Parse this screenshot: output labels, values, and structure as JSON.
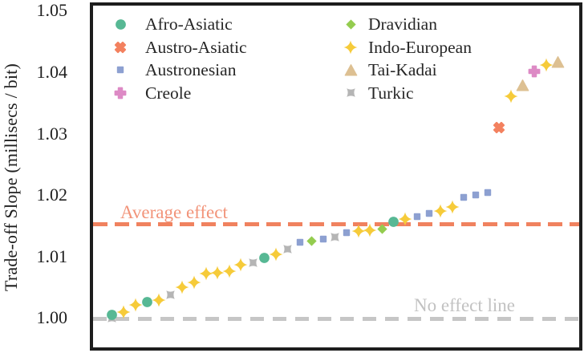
{
  "chart_data": {
    "type": "scatter",
    "title": "",
    "xlabel": "",
    "ylabel": "Trade-off Slope (millisecs / bit)",
    "ylim": [
      0.9993,
      1.0505
    ],
    "yticks": [
      1.0,
      1.01,
      1.02,
      1.03,
      1.04,
      1.05
    ],
    "grid": false,
    "legend": {
      "position": "upper-left-inside",
      "columns": 2
    },
    "families": [
      {
        "id": "afro_asiatic",
        "label": "Afro-Asiatic",
        "marker": "circle",
        "color": "#57b894"
      },
      {
        "id": "austro_asiatic",
        "label": "Austro-Asiatic",
        "marker": "x",
        "color": "#f3815f"
      },
      {
        "id": "austronesian",
        "label": "Austronesian",
        "marker": "square",
        "color": "#8da0d1"
      },
      {
        "id": "creole",
        "label": "Creole",
        "marker": "plus",
        "color": "#dd8ac5"
      },
      {
        "id": "dravidian",
        "label": "Dravidian",
        "marker": "diamond",
        "color": "#94cc4f"
      },
      {
        "id": "indo_european",
        "label": "Indo-European",
        "marker": "star4",
        "color": "#f6cb3a"
      },
      {
        "id": "tai_kadai",
        "label": "Tai-Kadai",
        "marker": "triangle",
        "color": "#ddc092"
      },
      {
        "id": "turkic",
        "label": "Turkic",
        "marker": "xstar",
        "color": "#b5b5b5"
      }
    ],
    "points": [
      {
        "slot": 0,
        "family": "turkic",
        "value": 1.0
      },
      {
        "slot": 0,
        "family": "afro_asiatic",
        "value": 1.0004
      },
      {
        "slot": 1,
        "family": "indo_european",
        "value": 1.0009
      },
      {
        "slot": 2,
        "family": "indo_european",
        "value": 1.0021
      },
      {
        "slot": 3,
        "family": "afro_asiatic",
        "value": 1.0026
      },
      {
        "slot": 4,
        "family": "indo_european",
        "value": 1.0029
      },
      {
        "slot": 5,
        "family": "turkic",
        "value": 1.0037
      },
      {
        "slot": 6,
        "family": "indo_european",
        "value": 1.005
      },
      {
        "slot": 7,
        "family": "indo_european",
        "value": 1.0058
      },
      {
        "slot": 8,
        "family": "indo_european",
        "value": 1.0072
      },
      {
        "slot": 9,
        "family": "indo_european",
        "value": 1.0073
      },
      {
        "slot": 10,
        "family": "indo_european",
        "value": 1.0076
      },
      {
        "slot": 11,
        "family": "indo_european",
        "value": 1.0086
      },
      {
        "slot": 12,
        "family": "turkic",
        "value": 1.0089
      },
      {
        "slot": 13,
        "family": "afro_asiatic",
        "value": 1.0098
      },
      {
        "slot": 14,
        "family": "indo_european",
        "value": 1.0103
      },
      {
        "slot": 15,
        "family": "turkic",
        "value": 1.0112
      },
      {
        "slot": 16,
        "family": "austronesian",
        "value": 1.0123
      },
      {
        "slot": 17,
        "family": "dravidian",
        "value": 1.0125
      },
      {
        "slot": 18,
        "family": "austronesian",
        "value": 1.0128
      },
      {
        "slot": 19,
        "family": "turkic",
        "value": 1.0132
      },
      {
        "slot": 20,
        "family": "austronesian",
        "value": 1.0139
      },
      {
        "slot": 21,
        "family": "indo_european",
        "value": 1.0141
      },
      {
        "slot": 22,
        "family": "indo_european",
        "value": 1.0143
      },
      {
        "slot": 23,
        "family": "dravidian",
        "value": 1.0144
      },
      {
        "slot": 24,
        "family": "afro_asiatic",
        "value": 1.0156
      },
      {
        "slot": 25,
        "family": "indo_european",
        "value": 1.0161
      },
      {
        "slot": 26,
        "family": "austronesian",
        "value": 1.0165
      },
      {
        "slot": 27,
        "family": "austronesian",
        "value": 1.017
      },
      {
        "slot": 28,
        "family": "indo_european",
        "value": 1.0174
      },
      {
        "slot": 29,
        "family": "indo_european",
        "value": 1.018
      },
      {
        "slot": 30,
        "family": "austronesian",
        "value": 1.0196
      },
      {
        "slot": 31,
        "family": "austronesian",
        "value": 1.02
      },
      {
        "slot": 32,
        "family": "austronesian",
        "value": 1.0204
      },
      {
        "slot": 33,
        "family": "austro_asiatic",
        "value": 1.031
      },
      {
        "slot": 34,
        "family": "indo_european",
        "value": 1.0361
      },
      {
        "slot": 35,
        "family": "tai_kadai",
        "value": 1.0378
      },
      {
        "slot": 36,
        "family": "creole",
        "value": 1.0401
      },
      {
        "slot": 37,
        "family": "indo_european",
        "value": 1.0412
      },
      {
        "slot": 38,
        "family": "tai_kadai",
        "value": 1.0416
      }
    ],
    "reference_lines": [
      {
        "id": "average_effect",
        "label": "Average effect",
        "value": 1.0152,
        "color": "#f0825f",
        "style": "dashed"
      },
      {
        "id": "no_effect",
        "label": "No effect line",
        "value": 1.0,
        "color": "#c6c6c6",
        "style": "dashed"
      }
    ]
  }
}
